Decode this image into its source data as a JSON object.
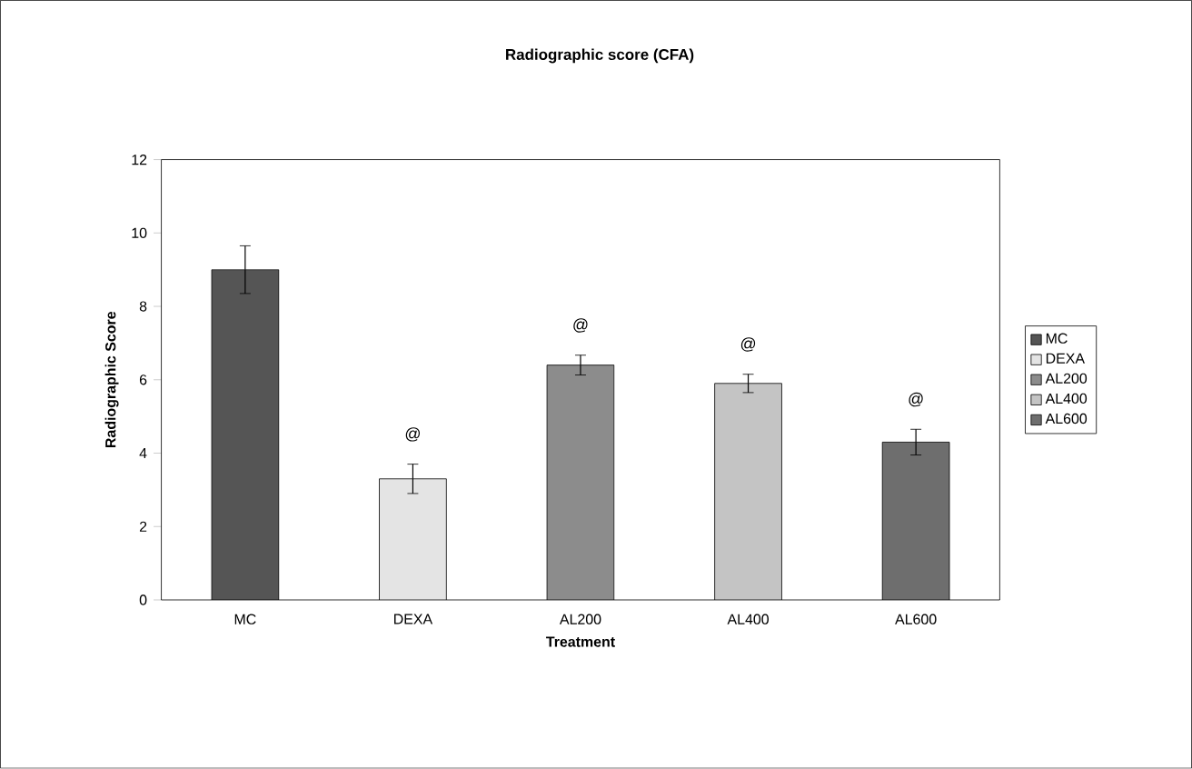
{
  "chart_data": {
    "type": "bar",
    "title": "Radiographic score (CFA)",
    "xlabel": "Treatment",
    "ylabel": "Radiographic Score",
    "categories": [
      "MC",
      "DEXA",
      "AL200",
      "AL400",
      "AL600"
    ],
    "series": [
      {
        "name": "MC",
        "color": "#555555",
        "values": [
          9.0,
          null,
          null,
          null,
          null
        ],
        "errors": [
          0.65,
          null,
          null,
          null,
          null
        ]
      },
      {
        "name": "DEXA",
        "color": "#e4e4e4",
        "values": [
          null,
          3.3,
          null,
          null,
          null
        ],
        "errors": [
          null,
          0.4,
          null,
          null,
          null
        ]
      },
      {
        "name": "AL200",
        "color": "#8c8c8c",
        "values": [
          null,
          null,
          6.4,
          null,
          null
        ],
        "errors": [
          null,
          null,
          0.27,
          null,
          null
        ]
      },
      {
        "name": "AL400",
        "color": "#c4c4c4",
        "values": [
          null,
          null,
          null,
          5.9,
          null
        ],
        "errors": [
          null,
          null,
          null,
          0.25,
          null
        ]
      },
      {
        "name": "AL600",
        "color": "#6e6e6e",
        "values": [
          null,
          null,
          null,
          null,
          4.3
        ],
        "errors": [
          null,
          null,
          null,
          null,
          0.35
        ]
      }
    ],
    "ylim": [
      0,
      12
    ],
    "yticks": [
      0,
      2,
      4,
      6,
      8,
      10,
      12
    ],
    "annotations": [
      "@",
      "@",
      "@",
      "@"
    ],
    "legend": "right"
  }
}
